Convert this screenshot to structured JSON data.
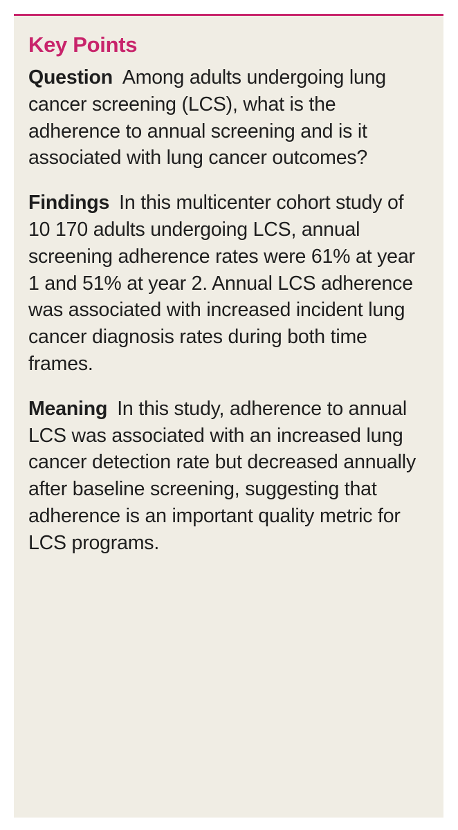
{
  "key_points": {
    "title": "Key Points",
    "title_color": "#c8246b",
    "background_color": "#f0ede4",
    "sections": [
      {
        "label": "Question",
        "text": "Among adults undergoing lung cancer screening (LCS), what is the adherence to annual screening and is it associated with lung cancer outcomes?"
      },
      {
        "label": "Findings",
        "text": "In this multicenter cohort study of 10 170 adults undergoing LCS, annual screening adherence rates were 61% at year 1 and 51% at year 2. Annual LCS adherence was associated with increased incident lung cancer diagnosis rates during both time frames."
      },
      {
        "label": "Meaning",
        "text": "In this study, adherence to annual LCS was associated with an increased lung cancer detection rate but decreased annually after baseline screening, suggesting that adherence is an important quality metric for LCS programs."
      }
    ]
  }
}
